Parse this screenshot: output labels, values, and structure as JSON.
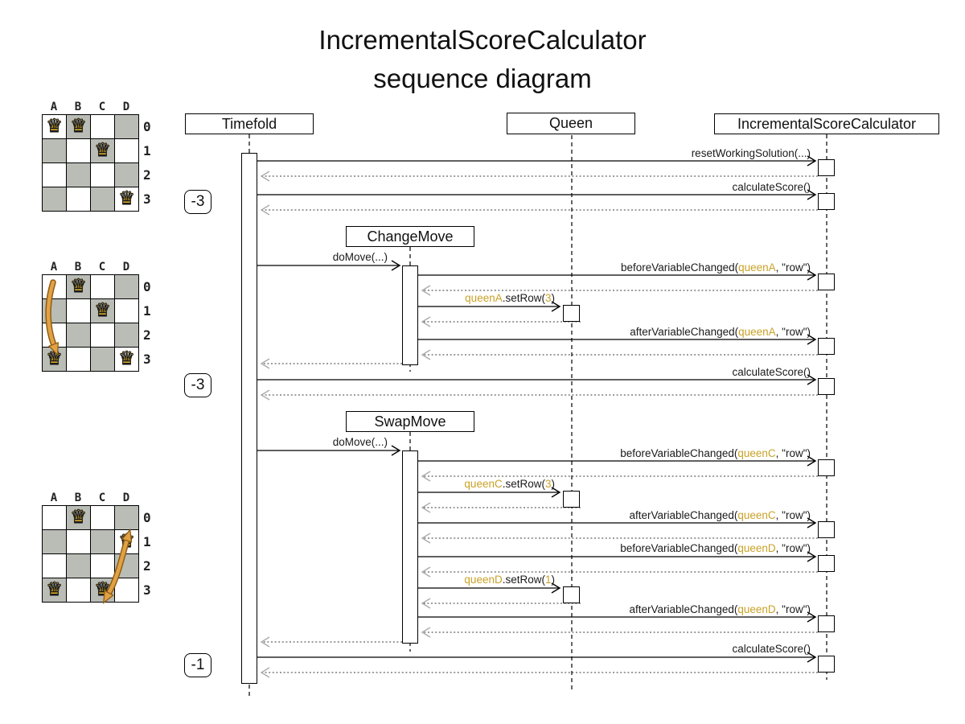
{
  "title": {
    "line1": "IncrementalScoreCalculator",
    "line2": "sequence diagram"
  },
  "colors": {
    "highlight_text": "#C9A227",
    "move_arrow": "#E2A145",
    "move_arrow_outline": "#8F5E14",
    "board_dark_cell": "#BABDB6",
    "board_light_cell": "#FFFFFF",
    "queen_gold": "#F9C52A",
    "return_arrowhead": "#ABABAB"
  },
  "icons": {
    "queen_glyph": "♛"
  },
  "lifelines": {
    "timefold": "Timefold",
    "queen": "Queen",
    "calculator": "IncrementalScoreCalculator"
  },
  "move_boxes": {
    "change": "ChangeMove",
    "swap": "SwapMove"
  },
  "score_badges": [
    {
      "value": "-3"
    },
    {
      "value": "-3"
    },
    {
      "value": "-1"
    }
  ],
  "board_labels": {
    "columns": [
      "A",
      "B",
      "C",
      "D"
    ],
    "rows": [
      "0",
      "1",
      "2",
      "3"
    ]
  },
  "boards": [
    {
      "name": "initial-solution",
      "queens": [
        "A0",
        "B0",
        "C1",
        "D3"
      ]
    },
    {
      "name": "after-change-move",
      "queens": [
        "B0",
        "C1",
        "A3",
        "D3"
      ],
      "move": {
        "type": "change",
        "from": "A0",
        "to": "A3"
      }
    },
    {
      "name": "after-swap-move",
      "queens": [
        "B0",
        "D1",
        "A3",
        "C3"
      ],
      "move": {
        "type": "swap",
        "between": [
          "D1",
          "C3"
        ]
      }
    }
  ],
  "messages": {
    "reset": {
      "segments": [
        {
          "t": "resetWorkingSolution(...)"
        }
      ]
    },
    "calc1": {
      "segments": [
        {
          "t": "calculateScore()"
        }
      ]
    },
    "do1": {
      "segments": [
        {
          "t": "doMove(...)"
        }
      ]
    },
    "beforeA": {
      "segments": [
        {
          "t": "beforeVariableChanged("
        },
        {
          "t": "queenA",
          "hl": true
        },
        {
          "t": ", \"row\")"
        }
      ]
    },
    "setRowA": {
      "segments": [
        {
          "t": "queenA",
          "hl": true
        },
        {
          "t": ".setRow("
        },
        {
          "t": "3",
          "hl": true
        },
        {
          "t": ")"
        }
      ]
    },
    "afterA": {
      "segments": [
        {
          "t": "afterVariableChanged("
        },
        {
          "t": "queenA",
          "hl": true
        },
        {
          "t": ", \"row\")"
        }
      ]
    },
    "calc2": {
      "segments": [
        {
          "t": "calculateScore()"
        }
      ]
    },
    "do2": {
      "segments": [
        {
          "t": "doMove(...)"
        }
      ]
    },
    "beforeC": {
      "segments": [
        {
          "t": "beforeVariableChanged("
        },
        {
          "t": "queenC",
          "hl": true
        },
        {
          "t": ", \"row\")"
        }
      ]
    },
    "setRowC": {
      "segments": [
        {
          "t": "queenC",
          "hl": true
        },
        {
          "t": ".setRow("
        },
        {
          "t": "3",
          "hl": true
        },
        {
          "t": ")"
        }
      ]
    },
    "afterC": {
      "segments": [
        {
          "t": "afterVariableChanged("
        },
        {
          "t": "queenC",
          "hl": true
        },
        {
          "t": ", \"row\")"
        }
      ]
    },
    "beforeD": {
      "segments": [
        {
          "t": "beforeVariableChanged("
        },
        {
          "t": "queenD",
          "hl": true
        },
        {
          "t": ", \"row\")"
        }
      ]
    },
    "setRowD": {
      "segments": [
        {
          "t": "queenD",
          "hl": true
        },
        {
          "t": ".setRow("
        },
        {
          "t": "1",
          "hl": true
        },
        {
          "t": ")"
        }
      ]
    },
    "afterD": {
      "segments": [
        {
          "t": "afterVariableChanged("
        },
        {
          "t": "queenD",
          "hl": true
        },
        {
          "t": ", \"row\")"
        }
      ]
    },
    "calc3": {
      "segments": [
        {
          "t": "calculateScore()"
        }
      ]
    }
  }
}
